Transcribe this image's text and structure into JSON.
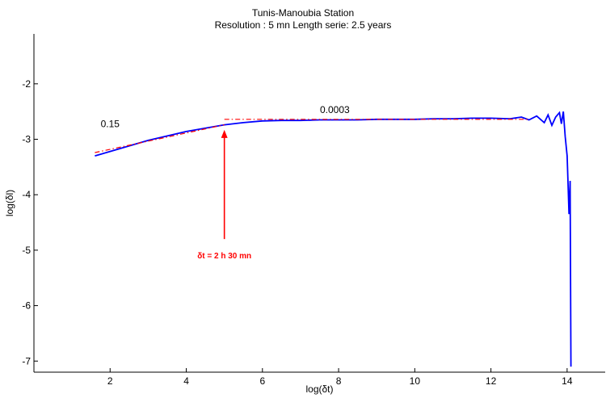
{
  "chart_data": {
    "type": "line",
    "title": "Tunis-Manoubia Station",
    "subtitle": "Resolution : 5 mn Length serie: 2.5 years",
    "xlabel": "log(δt)",
    "ylabel": "log(δl)",
    "xlim": [
      0,
      15
    ],
    "ylim": [
      -7.2,
      -1.1
    ],
    "xticks": [
      2,
      4,
      6,
      8,
      10,
      12,
      14
    ],
    "yticks": [
      -7,
      -6,
      -5,
      -4,
      -3,
      -2
    ],
    "grid": false,
    "series": [
      {
        "color": "#0000ff",
        "style": "solid",
        "x": [
          1.6,
          2.0,
          2.5,
          3.0,
          3.5,
          4.0,
          4.5,
          5.0,
          5.5,
          6.0,
          6.5,
          7.0,
          7.5,
          8.0,
          8.5,
          9.0,
          9.5,
          10.0,
          10.5,
          11.0,
          11.5,
          12.0,
          12.5,
          12.8,
          13.0,
          13.2,
          13.4,
          13.5,
          13.6,
          13.7,
          13.8,
          13.85,
          13.9,
          13.95,
          14.0,
          14.02,
          14.05,
          14.08,
          14.1
        ],
        "y": [
          -3.3,
          -3.22,
          -3.12,
          -3.02,
          -2.94,
          -2.86,
          -2.8,
          -2.74,
          -2.7,
          -2.67,
          -2.66,
          -2.66,
          -2.65,
          -2.65,
          -2.65,
          -2.64,
          -2.64,
          -2.64,
          -2.63,
          -2.63,
          -2.62,
          -2.62,
          -2.63,
          -2.6,
          -2.65,
          -2.58,
          -2.7,
          -2.56,
          -2.75,
          -2.6,
          -2.52,
          -2.72,
          -2.5,
          -2.95,
          -3.3,
          -3.7,
          -4.35,
          -3.75,
          -7.1
        ]
      },
      {
        "color": "#ff0000",
        "style": "dash-dot",
        "x": [
          1.6,
          5.0
        ],
        "y": [
          -3.24,
          -2.74
        ]
      },
      {
        "color": "#ff0000",
        "style": "dash-dot",
        "x": [
          5.0,
          13.0
        ],
        "y": [
          -2.64,
          -2.64
        ]
      }
    ],
    "annotations": [
      {
        "text": "0.15",
        "x": 2.0,
        "y": -2.78
      },
      {
        "text": "0.0003",
        "x": 7.9,
        "y": -2.53
      }
    ],
    "arrow": {
      "label": "δt = 2 h 30 mn",
      "color": "#ff0000",
      "x": 5.0,
      "y_from": -4.8,
      "y_to": -2.83
    }
  }
}
